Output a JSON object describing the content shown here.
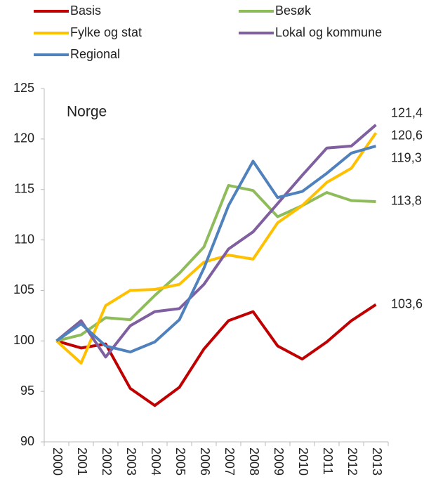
{
  "chart_data": {
    "type": "line",
    "annotations": [
      "Norge"
    ],
    "categories": [
      "2000",
      "2001",
      "2002",
      "2003",
      "2004",
      "2005",
      "2006",
      "2007",
      "2008",
      "2009",
      "2010",
      "2011",
      "2012",
      "2013"
    ],
    "series": [
      {
        "name": "Basis",
        "color": "#c00000",
        "values": [
          100,
          99.3,
          99.7,
          95.3,
          93.6,
          95.4,
          99.2,
          102.0,
          102.9,
          99.5,
          98.2,
          99.9,
          102.0,
          103.6
        ],
        "value_labels": [
          null,
          null,
          null,
          null,
          null,
          null,
          null,
          null,
          null,
          null,
          null,
          null,
          null,
          "103,6"
        ]
      },
      {
        "name": "Besøk",
        "color": "#8fbc5a",
        "values": [
          100,
          100.6,
          102.3,
          102.1,
          104.5,
          106.7,
          109.3,
          115.4,
          114.9,
          112.3,
          113.4,
          114.7,
          113.9,
          113.8
        ],
        "value_labels": [
          null,
          null,
          null,
          null,
          null,
          null,
          null,
          null,
          null,
          null,
          null,
          null,
          null,
          "113,8"
        ]
      },
      {
        "name": "Fylke og stat",
        "color": "#ffc000",
        "values": [
          100,
          97.8,
          103.5,
          105.0,
          105.1,
          105.6,
          107.8,
          108.5,
          108.1,
          111.7,
          113.4,
          115.7,
          117.1,
          120.6
        ],
        "value_labels": [
          null,
          null,
          null,
          null,
          null,
          null,
          null,
          null,
          null,
          null,
          null,
          null,
          null,
          "120,6"
        ]
      },
      {
        "name": "Lokal og kommune",
        "color": "#7f5fa0",
        "values": [
          100,
          102.0,
          98.4,
          101.5,
          102.9,
          103.2,
          105.6,
          109.1,
          110.8,
          113.6,
          116.4,
          119.1,
          119.3,
          121.4
        ],
        "value_labels": [
          null,
          null,
          null,
          null,
          null,
          null,
          null,
          null,
          null,
          null,
          null,
          null,
          null,
          "121,4"
        ]
      },
      {
        "name": "Regional",
        "color": "#4f81bd",
        "values": [
          100,
          101.7,
          99.5,
          98.9,
          99.9,
          102.1,
          107.2,
          113.4,
          117.8,
          114.2,
          114.8,
          116.6,
          118.6,
          119.3
        ],
        "value_labels": [
          null,
          null,
          null,
          null,
          null,
          null,
          null,
          null,
          null,
          null,
          null,
          null,
          null,
          "119,3"
        ]
      }
    ],
    "ylim": [
      90,
      125
    ],
    "yticks": [
      90,
      95,
      100,
      105,
      110,
      115,
      120,
      125
    ],
    "grid": false
  }
}
